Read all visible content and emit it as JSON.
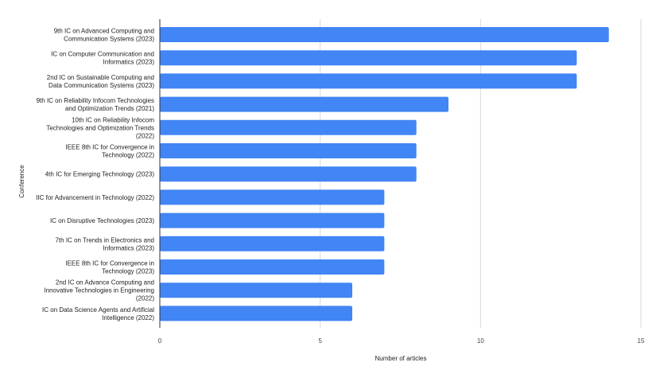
{
  "chart_data": {
    "type": "bar",
    "orientation": "horizontal",
    "xlabel": "Number of articles",
    "ylabel": "Conference",
    "xlim": [
      0,
      15
    ],
    "xticks": [
      0,
      5,
      10,
      15
    ],
    "grid": true,
    "colors": {
      "bar": "#4285f4",
      "grid": "#d9d9d9",
      "axis": "#333333"
    },
    "categories": [
      [
        "9th IC on Advanced Computing and",
        "Communication Systems (2023)"
      ],
      [
        "IC on Computer Communication and",
        "Informatics (2023)"
      ],
      [
        "2nd IC on Sustainable Computing and",
        "Data Communication Systems (2023)"
      ],
      [
        "9th IC on Reliability Infocom Technologies",
        "and Optimization Trends (2021)"
      ],
      [
        "10th IC on Reliability Infocom",
        "Technologies and Optimization Trends",
        "(2022)"
      ],
      [
        "IEEE 8th IC for Convergence in",
        "Technology (2022)"
      ],
      [
        "4th IC for Emerging Technology (2023)"
      ],
      [
        "IIC for Advancement in Technology (2022)"
      ],
      [
        "IC on Disruptive Technologies (2023)"
      ],
      [
        "7th IC on Trends in Electronics and",
        "Informatics (2023)"
      ],
      [
        "IEEE 8th IC for Convergence in",
        "Technology (2023)"
      ],
      [
        "2nd IC on Advance Computing and",
        "Innovative Technologies in Engineering",
        "(2022)"
      ],
      [
        "IC on Data Science Agents and Artificial",
        "Intelligence (2022)"
      ]
    ],
    "values": [
      14,
      13,
      13,
      9,
      8,
      8,
      8,
      7,
      7,
      7,
      7,
      6,
      6
    ]
  }
}
